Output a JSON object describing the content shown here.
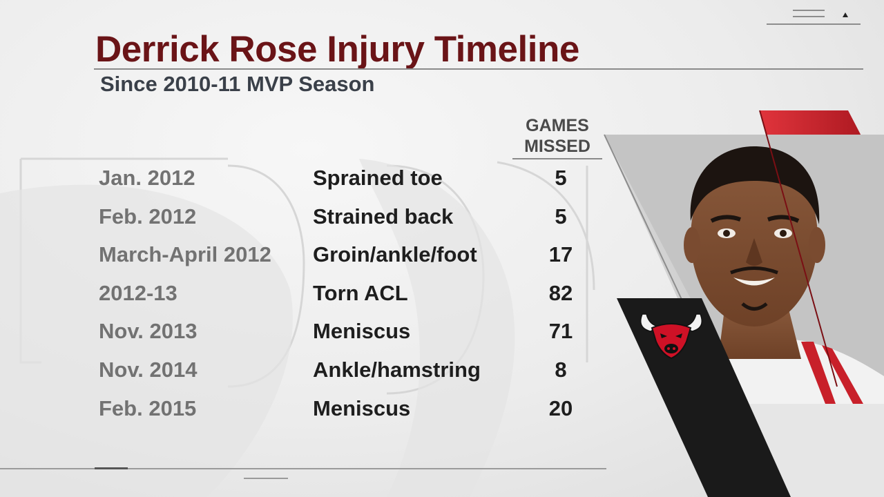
{
  "graphic": {
    "title": "Derrick Rose Injury Timeline",
    "subtitle": "Since 2010-11 MVP Season",
    "column_header_line1": "GAMES",
    "column_header_line2": "MISSED",
    "rows": [
      {
        "date": "Jan. 2012",
        "injury": "Sprained toe",
        "games_missed": "5"
      },
      {
        "date": "Feb. 2012",
        "injury": "Strained back",
        "games_missed": "5"
      },
      {
        "date": "March-April 2012",
        "injury": "Groin/ankle/foot",
        "games_missed": "17"
      },
      {
        "date": "2012-13",
        "injury": "Torn ACL",
        "games_missed": "82"
      },
      {
        "date": "Nov. 2013",
        "injury": "Meniscus",
        "games_missed": "71"
      },
      {
        "date": "Nov. 2014",
        "injury": "Ankle/hamstring",
        "games_missed": "8"
      },
      {
        "date": "Feb. 2015",
        "injury": "Meniscus",
        "games_missed": "20"
      }
    ]
  },
  "colors": {
    "title": "#6a1417",
    "subtitle": "#3a4049",
    "date_text": "#727272",
    "body_text": "#1e1e1e",
    "accent_red": "#c8202a",
    "panel_black": "#1a1a1a"
  },
  "icons": {
    "team_logo": "chicago-bulls-logo-icon",
    "player_photo": "player-headshot"
  }
}
